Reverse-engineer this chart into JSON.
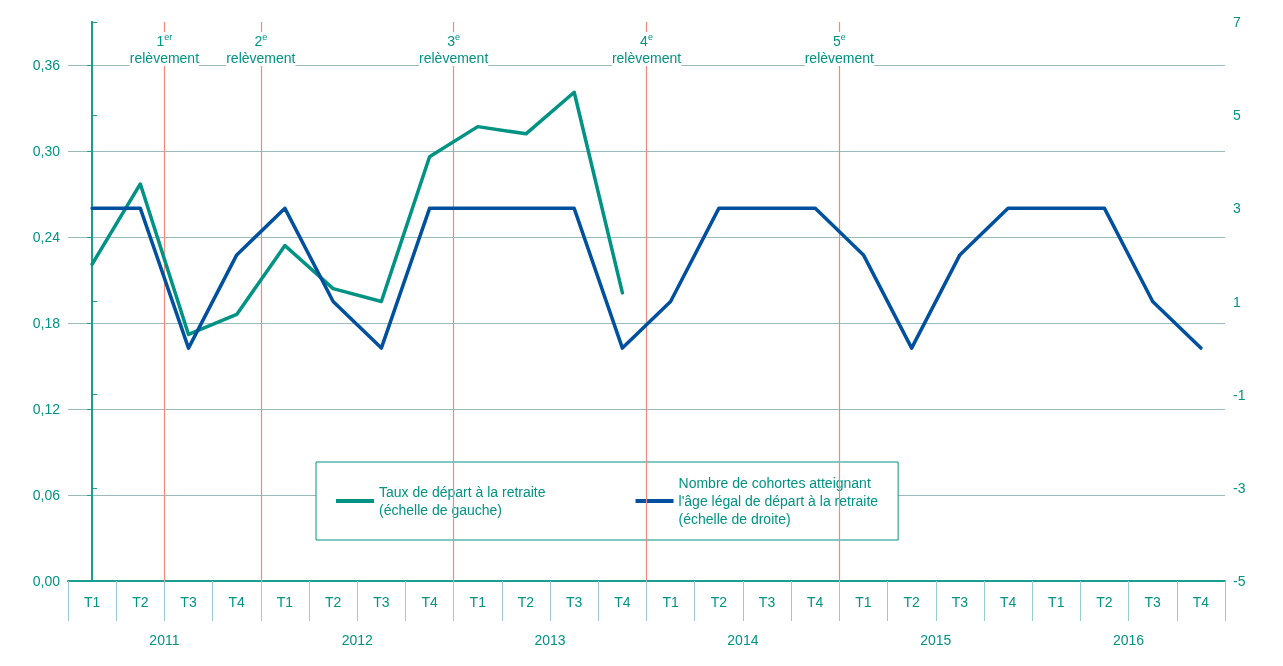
{
  "chart_data": {
    "type": "line",
    "categories": [
      "T1",
      "T2",
      "T3",
      "T4",
      "T1",
      "T2",
      "T3",
      "T4",
      "T1",
      "T2",
      "T3",
      "T4",
      "T1",
      "T2",
      "T3",
      "T4",
      "T1",
      "T2",
      "T3",
      "T4",
      "T1",
      "T2",
      "T3",
      "T4"
    ],
    "series": [
      {
        "name": "Taux de départ à la retraite\n(échelle de gauche)",
        "color": "#009384",
        "values": [
          0.221,
          0.277,
          0.172,
          0.186,
          0.234,
          0.204,
          0.195,
          0.296,
          0.317,
          0.312,
          0.341,
          0.201,
          null,
          null,
          null,
          null,
          null,
          null,
          null,
          null,
          null,
          null,
          null,
          null
        ]
      },
      {
        "name": "Nombre de cohortes atteignant\nl'âge légal de départ à la retraite\n(échelle de droite)",
        "color": "#0050a0",
        "axis": "y2",
        "values": [
          3,
          3,
          0,
          2,
          3,
          1,
          0,
          3,
          3,
          3,
          3,
          0,
          1,
          3,
          3,
          3,
          2,
          0,
          2,
          3,
          3,
          3,
          1,
          0
        ]
      }
    ],
    "ylim": [
      0,
      0.39
    ],
    "yticks": [
      {
        "value": 0,
        "label": "0,00"
      },
      {
        "value": 0.06,
        "label": "0,06"
      },
      {
        "value": 0.12,
        "label": "0,12"
      },
      {
        "value": 0.18,
        "label": "0,18"
      },
      {
        "value": 0.24,
        "label": "0,24"
      },
      {
        "value": 0.3,
        "label": "0,30"
      },
      {
        "value": 0.36,
        "label": "0,36"
      }
    ],
    "y2lim": [
      -5,
      7
    ],
    "y2ticks": [
      -5,
      -3,
      -1,
      1,
      3,
      5,
      7
    ],
    "annotations": [
      "2011",
      "2012",
      "2013",
      "2014",
      "2015",
      "2016",
      "1$^{er}$\nrelèvement",
      "2$^{e}$\nrelèvement",
      "3$^{e}$\nrelèvement",
      "4$^{e}$\nrelèvement",
      "5$^{e}$\nrelèvement"
    ],
    "grid": "y",
    "legend": "bottom",
    "marker": "none",
    "line_style": "solid"
  }
}
